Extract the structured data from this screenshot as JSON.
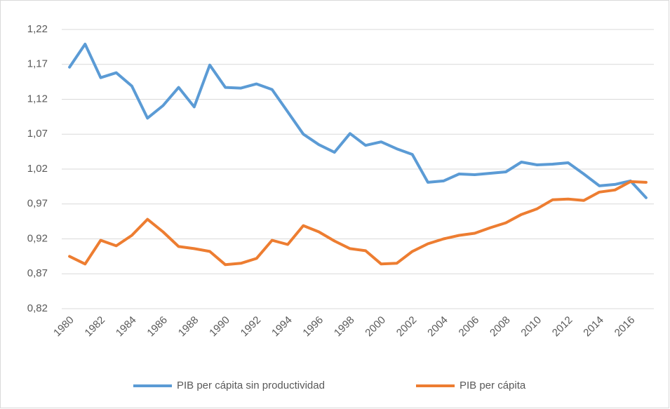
{
  "chart_data": {
    "type": "line",
    "categories": [
      "1980",
      null,
      "1982",
      null,
      "1984",
      null,
      "1986",
      null,
      "1988",
      null,
      "1990",
      null,
      "1992",
      null,
      "1994",
      null,
      "1996",
      null,
      "1998",
      null,
      "2000",
      null,
      "2002",
      null,
      "2004",
      null,
      "2006",
      null,
      "2008",
      null,
      "2010",
      null,
      "2012",
      null,
      "2014",
      null,
      "2016",
      null
    ],
    "series": [
      {
        "name": "PIB per cápita sin productividad",
        "color": "#5b9bd5",
        "values": [
          1.166,
          1.199,
          1.151,
          1.158,
          1.139,
          1.093,
          1.111,
          1.137,
          1.109,
          1.169,
          1.137,
          1.136,
          1.142,
          1.134,
          1.102,
          1.07,
          1.055,
          1.044,
          1.071,
          1.054,
          1.059,
          1.049,
          1.041,
          1.001,
          1.003,
          1.013,
          1.012,
          1.014,
          1.016,
          1.03,
          1.026,
          1.027,
          1.029,
          1.013,
          0.996,
          0.998,
          1.003,
          0.979
        ]
      },
      {
        "name": "PIB per cápita",
        "color": "#ed7d31",
        "values": [
          0.895,
          0.884,
          0.918,
          0.91,
          0.925,
          0.948,
          0.93,
          0.909,
          0.906,
          0.902,
          0.883,
          0.885,
          0.892,
          0.918,
          0.912,
          0.939,
          0.93,
          0.917,
          0.906,
          0.903,
          0.884,
          0.885,
          0.902,
          0.913,
          0.92,
          0.925,
          0.928,
          0.936,
          0.943,
          0.955,
          0.963,
          0.976,
          0.977,
          0.975,
          0.987,
          0.99,
          1.002,
          1.001
        ]
      }
    ],
    "ylim": [
      0.82,
      1.22
    ],
    "yticks": [
      {
        "value": 0.82,
        "label": "0,82"
      },
      {
        "value": 0.87,
        "label": "0,87"
      },
      {
        "value": 0.92,
        "label": "0,92"
      },
      {
        "value": 0.97,
        "label": "0,97"
      },
      {
        "value": 1.02,
        "label": "1,02"
      },
      {
        "value": 1.07,
        "label": "1,07"
      },
      {
        "value": 1.12,
        "label": "1,12"
      },
      {
        "value": 1.17,
        "label": "1,17"
      },
      {
        "value": 1.22,
        "label": "1,22"
      }
    ],
    "grid": true,
    "legend": "bottom"
  }
}
